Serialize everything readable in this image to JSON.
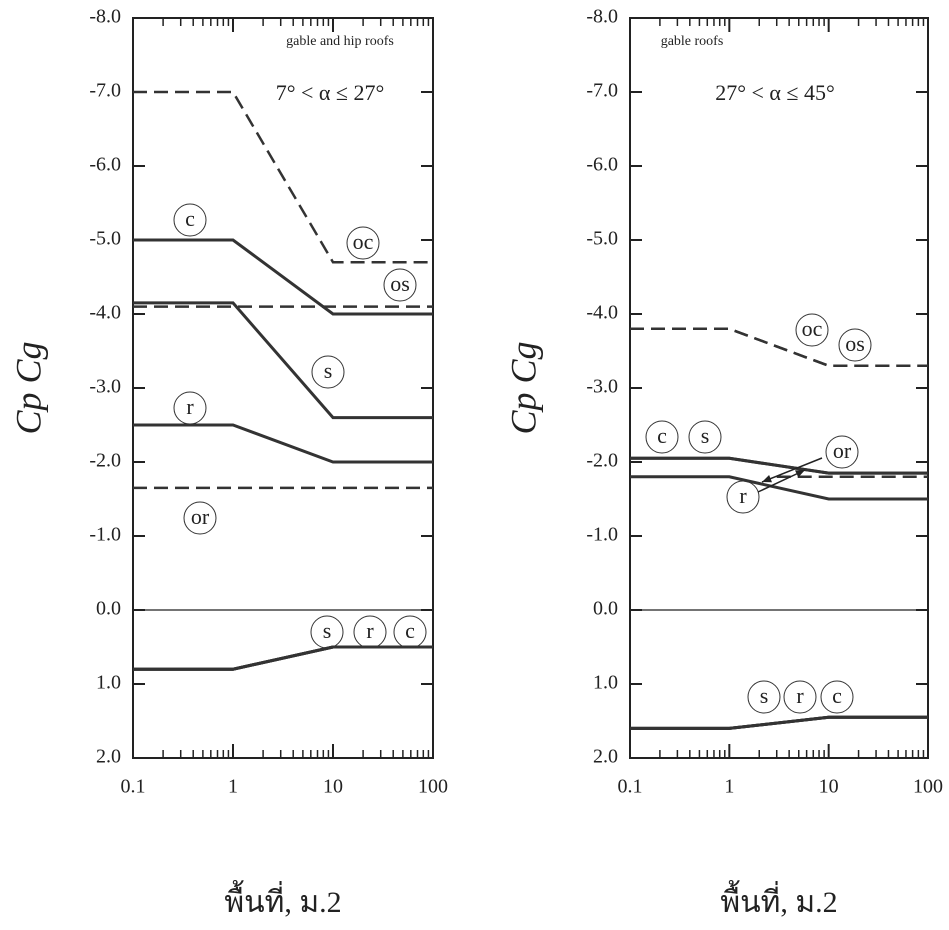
{
  "chart_data": [
    {
      "type": "line",
      "xscale": "log",
      "ylabel": "Cp Cg",
      "xlabel": "พื้นที่, ม.2",
      "annotations": [
        "gable and hip roofs",
        "7° < α ≤ 27°"
      ],
      "xlim": [
        0.1,
        100
      ],
      "xticks": [
        0.1,
        1,
        10,
        100
      ],
      "ylim": [
        2,
        -8
      ],
      "yticks": [
        {
          "value": -8,
          "label": "-8.0"
        },
        {
          "value": -7,
          "label": "-7.0"
        },
        {
          "value": -6,
          "label": "-6.0"
        },
        {
          "value": -5,
          "label": "-5.0"
        },
        {
          "value": -4,
          "label": "-4.0"
        },
        {
          "value": -3,
          "label": "-3.0"
        },
        {
          "value": -2,
          "label": "-2.0"
        },
        {
          "value": -1,
          "label": "-1.0"
        },
        {
          "value": 0,
          "label": "0.0"
        },
        {
          "value": 1,
          "label": "1.0"
        },
        {
          "value": 2,
          "label": "2.0"
        }
      ],
      "series": [
        {
          "name": "oc",
          "color": "#333333",
          "dashed": true,
          "x": [
            0.1,
            1,
            10,
            100
          ],
          "values": [
            -7.0,
            -7.0,
            -4.7,
            -4.7
          ]
        },
        {
          "name": "c",
          "color": "#333333",
          "dashed": false,
          "x": [
            0.1,
            1,
            10,
            100
          ],
          "values": [
            -5.0,
            -5.0,
            -4.0,
            -4.0
          ]
        },
        {
          "name": "os",
          "color": "#333333",
          "dashed": true,
          "x": [
            0.1,
            1,
            10,
            100
          ],
          "values": [
            -4.1,
            -4.1,
            -4.1,
            -4.1
          ]
        },
        {
          "name": "s",
          "color": "#333333",
          "dashed": false,
          "x": [
            0.1,
            1,
            10,
            100
          ],
          "values": [
            -4.15,
            -4.15,
            -2.6,
            -2.6
          ]
        },
        {
          "name": "r",
          "color": "#333333",
          "dashed": false,
          "x": [
            0.1,
            1,
            10,
            100
          ],
          "values": [
            -2.5,
            -2.5,
            -2.0,
            -2.0
          ]
        },
        {
          "name": "or",
          "color": "#333333",
          "dashed": true,
          "x": [
            0.1,
            1,
            10,
            100
          ],
          "values": [
            -1.65,
            -1.65,
            -1.65,
            -1.65
          ]
        },
        {
          "name": "s",
          "color": "#333333",
          "dashed": false,
          "x": [
            0.1,
            1,
            10,
            100
          ],
          "values": [
            0.8,
            0.8,
            0.5,
            0.5
          ]
        },
        {
          "name": "r",
          "color": "#333333",
          "dashed": false,
          "x": [
            0.1,
            1,
            10,
            100
          ],
          "values": [
            0.8,
            0.8,
            0.5,
            0.5
          ]
        },
        {
          "name": "c",
          "color": "#333333",
          "dashed": false,
          "x": [
            0.1,
            1,
            10,
            100
          ],
          "values": [
            0.8,
            0.8,
            0.5,
            0.5
          ]
        }
      ]
    },
    {
      "type": "line",
      "xscale": "log",
      "ylabel": "Cp Cg",
      "xlabel": "พื้นที่, ม.2",
      "annotations": [
        "gable roofs",
        "27° < α ≤ 45°"
      ],
      "xlim": [
        0.1,
        100
      ],
      "xticks": [
        0.1,
        1,
        10,
        100
      ],
      "ylim": [
        2,
        -8
      ],
      "yticks": [
        {
          "value": -8,
          "label": "-8.0"
        },
        {
          "value": -7,
          "label": "-7.0"
        },
        {
          "value": -6,
          "label": "-6.0"
        },
        {
          "value": -5,
          "label": "-5.0"
        },
        {
          "value": -4,
          "label": "-4.0"
        },
        {
          "value": -3,
          "label": "-3.0"
        },
        {
          "value": -2,
          "label": "-2.0"
        },
        {
          "value": -1,
          "label": "-1.0"
        },
        {
          "value": 0,
          "label": "0.0"
        },
        {
          "value": 1,
          "label": "1.0"
        },
        {
          "value": 2,
          "label": "2.0"
        }
      ],
      "series": [
        {
          "name": "oc",
          "color": "#333333",
          "dashed": true,
          "x": [
            0.1,
            1,
            10,
            100
          ],
          "values": [
            -3.8,
            -3.8,
            -3.3,
            -3.3
          ]
        },
        {
          "name": "os",
          "color": "#333333",
          "dashed": true,
          "x": [
            0.1,
            1,
            10,
            100
          ],
          "values": [
            -3.8,
            -3.8,
            -3.3,
            -3.3
          ]
        },
        {
          "name": "c",
          "color": "#333333",
          "dashed": false,
          "x": [
            0.1,
            1,
            10,
            100
          ],
          "values": [
            -2.05,
            -2.05,
            -1.85,
            -1.85
          ]
        },
        {
          "name": "s",
          "color": "#333333",
          "dashed": false,
          "x": [
            0.1,
            1,
            10,
            100
          ],
          "values": [
            -2.05,
            -2.05,
            -1.85,
            -1.85
          ]
        },
        {
          "name": "or",
          "color": "#333333",
          "dashed": true,
          "x": [
            3,
            100
          ],
          "values": [
            -1.8,
            -1.8
          ]
        },
        {
          "name": "r",
          "color": "#333333",
          "dashed": false,
          "x": [
            0.1,
            1,
            10,
            100
          ],
          "values": [
            -1.8,
            -1.8,
            -1.5,
            -1.5
          ]
        },
        {
          "name": "s",
          "color": "#333333",
          "dashed": false,
          "x": [
            0.1,
            1,
            10,
            100
          ],
          "values": [
            1.6,
            1.6,
            1.45,
            1.45
          ]
        },
        {
          "name": "r",
          "color": "#333333",
          "dashed": false,
          "x": [
            0.1,
            1,
            10,
            100
          ],
          "values": [
            1.6,
            1.6,
            1.45,
            1.45
          ]
        },
        {
          "name": "c",
          "color": "#333333",
          "dashed": false,
          "x": [
            0.1,
            1,
            10,
            100
          ],
          "values": [
            1.6,
            1.6,
            1.45,
            1.45
          ]
        }
      ]
    }
  ]
}
